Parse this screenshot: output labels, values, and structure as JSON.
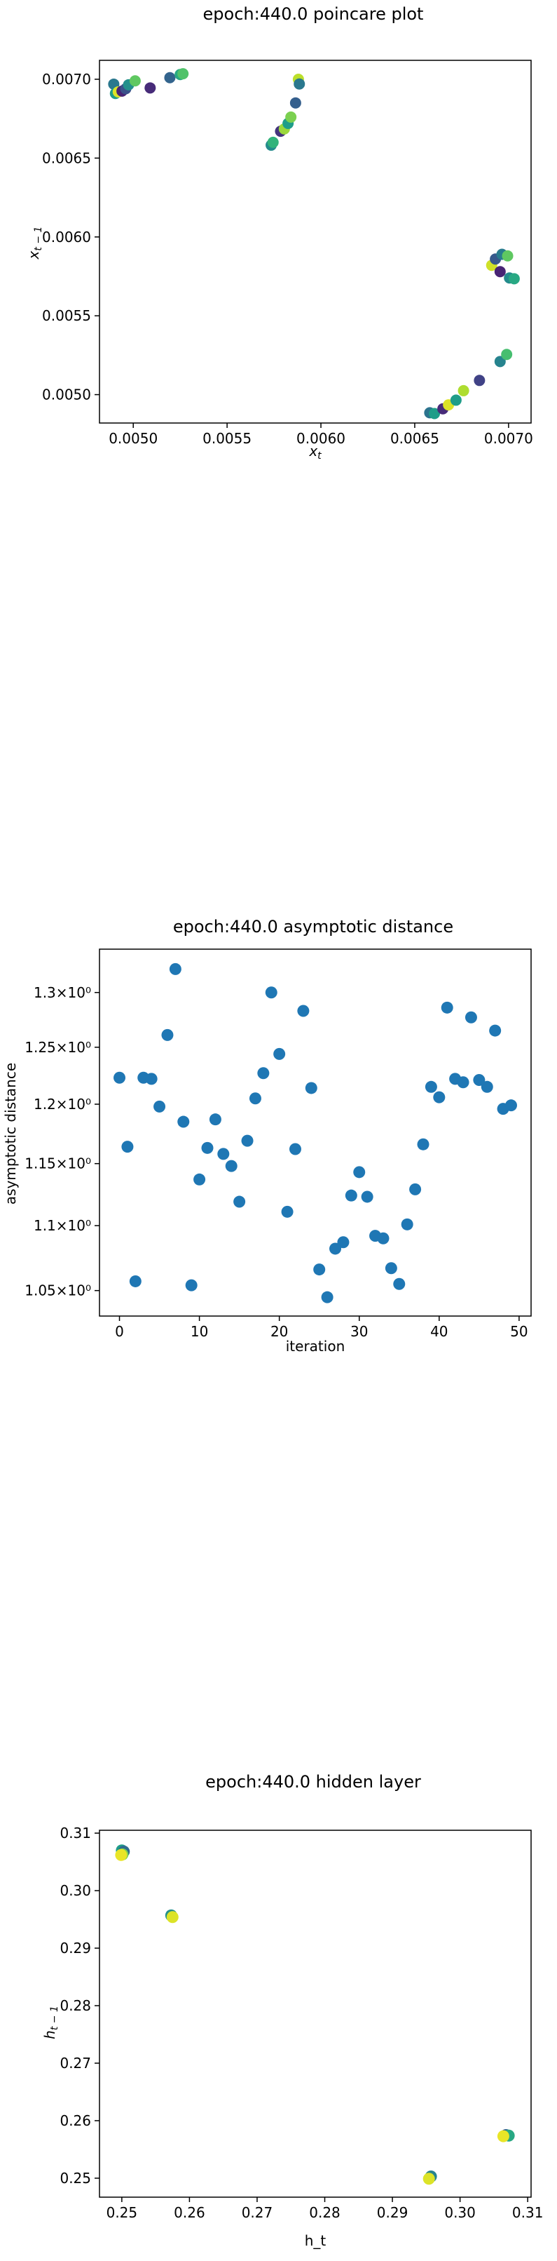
{
  "chart_data": [
    {
      "type": "scatter",
      "title": "epoch:440.0 poincare plot",
      "xlabel": "x_t",
      "ylabel": "x_{t-1}",
      "xlim": [
        0.00482,
        0.00712
      ],
      "ylim": [
        0.00482,
        0.00712
      ],
      "xticks": [
        0.005,
        0.0055,
        0.006,
        0.0065,
        0.007
      ],
      "xtick_labels": [
        "0.0050",
        "0.0055",
        "0.0060",
        "0.0065",
        "0.0070"
      ],
      "yticks": [
        0.005,
        0.0055,
        0.006,
        0.0065,
        0.007
      ],
      "ytick_labels": [
        "0.0050",
        "0.0055",
        "0.0060",
        "0.0065",
        "0.0070"
      ],
      "colormap": "viridis",
      "points": [
        {
          "x": 0.004896,
          "y": 0.006969,
          "c": 0.4
        },
        {
          "x": 0.004905,
          "y": 0.00691,
          "c": 0.55
        },
        {
          "x": 0.00492,
          "y": 0.00692,
          "c": 0.95
        },
        {
          "x": 0.00494,
          "y": 0.006925,
          "c": 0.1
        },
        {
          "x": 0.00496,
          "y": 0.00694,
          "c": 0.25
        },
        {
          "x": 0.004975,
          "y": 0.006965,
          "c": 0.5
        },
        {
          "x": 0.00501,
          "y": 0.00699,
          "c": 0.75
        },
        {
          "x": 0.00509,
          "y": 0.006945,
          "c": 0.12
        },
        {
          "x": 0.005195,
          "y": 0.00701,
          "c": 0.32
        },
        {
          "x": 0.00525,
          "y": 0.00703,
          "c": 0.6
        },
        {
          "x": 0.005265,
          "y": 0.007035,
          "c": 0.72
        },
        {
          "x": 0.005735,
          "y": 0.006582,
          "c": 0.48
        },
        {
          "x": 0.005745,
          "y": 0.0066,
          "c": 0.65
        },
        {
          "x": 0.005785,
          "y": 0.00667,
          "c": 0.15
        },
        {
          "x": 0.005805,
          "y": 0.006685,
          "c": 0.85
        },
        {
          "x": 0.005825,
          "y": 0.00672,
          "c": 0.55
        },
        {
          "x": 0.00584,
          "y": 0.00676,
          "c": 0.8
        },
        {
          "x": 0.005865,
          "y": 0.00685,
          "c": 0.3
        },
        {
          "x": 0.00588,
          "y": 0.007,
          "c": 0.9
        },
        {
          "x": 0.005885,
          "y": 0.00697,
          "c": 0.4
        },
        {
          "x": 0.00658,
          "y": 0.004885,
          "c": 0.38
        },
        {
          "x": 0.006605,
          "y": 0.00488,
          "c": 0.55
        },
        {
          "x": 0.00665,
          "y": 0.00491,
          "c": 0.12
        },
        {
          "x": 0.00668,
          "y": 0.004935,
          "c": 0.95
        },
        {
          "x": 0.00672,
          "y": 0.004965,
          "c": 0.55
        },
        {
          "x": 0.00676,
          "y": 0.005025,
          "c": 0.88
        },
        {
          "x": 0.006845,
          "y": 0.00509,
          "c": 0.2
        },
        {
          "x": 0.006955,
          "y": 0.00521,
          "c": 0.45
        },
        {
          "x": 0.00699,
          "y": 0.005255,
          "c": 0.7
        },
        {
          "x": 0.00691,
          "y": 0.00582,
          "c": 0.93
        },
        {
          "x": 0.00693,
          "y": 0.00586,
          "c": 0.28
        },
        {
          "x": 0.006955,
          "y": 0.00578,
          "c": 0.1
        },
        {
          "x": 0.006965,
          "y": 0.00589,
          "c": 0.42
        },
        {
          "x": 0.006995,
          "y": 0.00588,
          "c": 0.75
        },
        {
          "x": 0.007005,
          "y": 0.00574,
          "c": 0.48
        },
        {
          "x": 0.00703,
          "y": 0.005735,
          "c": 0.6
        }
      ]
    },
    {
      "type": "scatter",
      "title": "epoch:440.0 asymptotic distance",
      "xlabel": "iteration",
      "ylabel": "asymptotic distance",
      "yscale": "log",
      "xlim": [
        -2.5,
        51.5
      ],
      "ylim": [
        1.031,
        1.341
      ],
      "xticks": [
        0,
        10,
        20,
        30,
        40,
        50
      ],
      "xtick_labels": [
        "0",
        "10",
        "20",
        "30",
        "40",
        "50"
      ],
      "ytick_values": [
        1.05,
        1.1,
        1.15,
        1.2,
        1.25,
        1.3
      ],
      "ytick_labels": [
        "1.05×10⁰",
        "1.1×10⁰",
        "1.15×10⁰",
        "1.2×10⁰",
        "1.25×10⁰",
        "1.3×10⁰"
      ],
      "color": "#1f77b4",
      "x": [
        0,
        1,
        2,
        3,
        4,
        5,
        6,
        7,
        8,
        9,
        10,
        11,
        12,
        13,
        14,
        15,
        16,
        17,
        18,
        19,
        20,
        21,
        22,
        23,
        24,
        25,
        26,
        27,
        28,
        29,
        30,
        31,
        32,
        33,
        34,
        35,
        36,
        37,
        38,
        39,
        40,
        41,
        42,
        43,
        44,
        45,
        46,
        47,
        48,
        49
      ],
      "y": [
        1.223,
        1.164,
        1.057,
        1.223,
        1.222,
        1.198,
        1.261,
        1.322,
        1.185,
        1.054,
        1.137,
        1.163,
        1.187,
        1.158,
        1.148,
        1.119,
        1.169,
        1.205,
        1.227,
        1.3,
        1.244,
        1.111,
        1.162,
        1.283,
        1.214,
        1.066,
        1.045,
        1.082,
        1.087,
        1.124,
        1.143,
        1.123,
        1.092,
        1.09,
        1.067,
        1.055,
        1.101,
        1.129,
        1.166,
        1.215,
        1.206,
        1.286,
        1.222,
        1.219,
        1.277,
        1.221,
        1.215,
        1.265,
        1.196,
        1.199
      ]
    },
    {
      "type": "scatter",
      "title": "epoch:440.0 hidden layer",
      "xlabel": "h_t",
      "ylabel": "h_{t-1}",
      "xlim": [
        0.2467,
        0.3105
      ],
      "ylim": [
        0.2467,
        0.3105
      ],
      "xticks": [
        0.25,
        0.26,
        0.27,
        0.28,
        0.29,
        0.3,
        0.31
      ],
      "xtick_labels": [
        "0.25",
        "0.26",
        "0.27",
        "0.28",
        "0.29",
        "0.30",
        "0.31"
      ],
      "yticks": [
        0.25,
        0.26,
        0.27,
        0.28,
        0.29,
        0.3,
        0.31
      ],
      "ytick_labels": [
        "0.25",
        "0.26",
        "0.27",
        "0.28",
        "0.29",
        "0.30",
        "0.31"
      ],
      "colormap": "viridis",
      "points": [
        {
          "x": 0.25,
          "y": 0.307,
          "c": 0.55
        },
        {
          "x": 0.2503,
          "y": 0.3068,
          "c": 0.35
        },
        {
          "x": 0.2501,
          "y": 0.3063,
          "c": 0.8
        },
        {
          "x": 0.2499,
          "y": 0.3062,
          "c": 0.97
        },
        {
          "x": 0.2573,
          "y": 0.2957,
          "c": 0.5
        },
        {
          "x": 0.2575,
          "y": 0.2954,
          "c": 0.95
        },
        {
          "x": 0.2957,
          "y": 0.2503,
          "c": 0.45
        },
        {
          "x": 0.2954,
          "y": 0.2499,
          "c": 0.95
        },
        {
          "x": 0.3068,
          "y": 0.2575,
          "c": 0.3
        },
        {
          "x": 0.3072,
          "y": 0.2574,
          "c": 0.6
        },
        {
          "x": 0.3064,
          "y": 0.2573,
          "c": 0.97
        }
      ]
    }
  ]
}
